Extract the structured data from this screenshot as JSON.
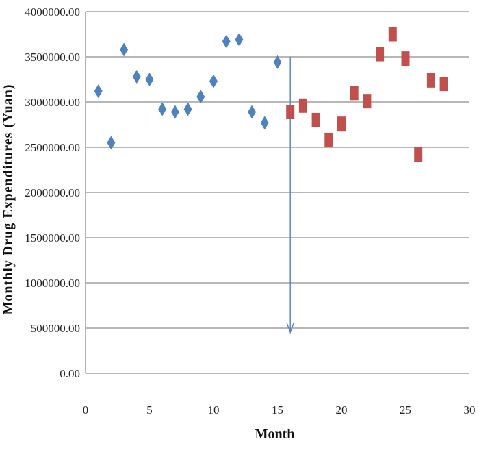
{
  "chart_data": {
    "type": "scatter",
    "xlabel": "Month",
    "ylabel": "Monthly Drug Expenditures (Yuan)",
    "xlim": [
      0,
      30
    ],
    "ylim": [
      0,
      4000000
    ],
    "x_ticks": [
      "0",
      "5",
      "10",
      "15",
      "20",
      "25",
      "30"
    ],
    "y_ticks": [
      "0.00",
      "500000.00",
      "1000000.00",
      "1500000.00",
      "2000000.00",
      "2500000.00",
      "3000000.00",
      "3500000.00",
      "4000000.00"
    ],
    "grid": "horizontal",
    "series": [
      {
        "marker": "diamond",
        "color": "#4F81BD",
        "points": [
          [
            1,
            3120000
          ],
          [
            2,
            2550000
          ],
          [
            3,
            3580000
          ],
          [
            4,
            3280000
          ],
          [
            5,
            3250000
          ],
          [
            6,
            2920000
          ],
          [
            7,
            2890000
          ],
          [
            8,
            2920000
          ],
          [
            9,
            3060000
          ],
          [
            10,
            3230000
          ],
          [
            11,
            3670000
          ],
          [
            12,
            3690000
          ],
          [
            13,
            2890000
          ],
          [
            14,
            2770000
          ],
          [
            15,
            3440000
          ]
        ]
      },
      {
        "marker": "square",
        "color": "#C0504D",
        "points": [
          [
            16,
            2890000
          ],
          [
            17,
            2960000
          ],
          [
            18,
            2800000
          ],
          [
            19,
            2580000
          ],
          [
            20,
            2760000
          ],
          [
            21,
            3100000
          ],
          [
            22,
            3010000
          ],
          [
            23,
            3530000
          ],
          [
            24,
            3750000
          ],
          [
            25,
            3480000
          ],
          [
            26,
            2420000
          ],
          [
            27,
            3240000
          ],
          [
            28,
            3200000
          ]
        ]
      }
    ],
    "annotations": [
      {
        "type": "arrow",
        "color": "#4F81BD",
        "x": 16,
        "y_from": 3500000,
        "y_to": 450000
      }
    ]
  }
}
